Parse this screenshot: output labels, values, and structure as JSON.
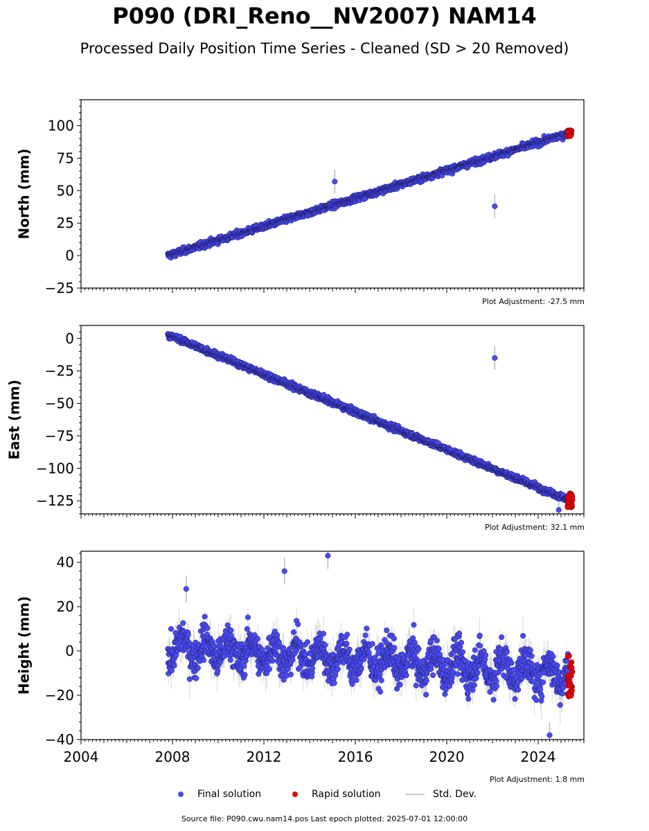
{
  "header": {
    "title": "P090 (DRI_Reno__NV2007) NAM14",
    "subtitle": "Processed Daily Position Time Series - Cleaned (SD > 20 Removed)"
  },
  "colors": {
    "final": "#4a4af0",
    "final_edge": "#1a1a60",
    "rapid": "#e00000",
    "stddev": "#b8b8b8"
  },
  "chart_data": [
    {
      "type": "scatter",
      "ylabel": "North (mm)",
      "xlim": [
        2004,
        2026
      ],
      "ylim": [
        -25,
        120
      ],
      "yticks": [
        -25,
        0,
        25,
        50,
        75,
        100
      ],
      "ytick_labels": [
        "−25",
        "0",
        "25",
        "50",
        "75",
        "100"
      ],
      "adjustment": "Plot Adjustment: -27.5 mm",
      "final_trend": {
        "x": [
          2007.8,
          2025.3
        ],
        "y": [
          0,
          94
        ]
      },
      "noise_mm": 2.0,
      "outliers": [
        {
          "x": 2022.1,
          "y": 38
        },
        {
          "x": 2015.1,
          "y": 57
        }
      ],
      "rapid_range": {
        "x": [
          2025.28,
          2025.5
        ],
        "y": [
          92,
          97
        ]
      },
      "series": [
        {
          "name": "Final solution"
        },
        {
          "name": "Rapid solution"
        },
        {
          "name": "Std. Dev."
        }
      ]
    },
    {
      "type": "scatter",
      "ylabel": "East (mm)",
      "xlim": [
        2004,
        2026
      ],
      "ylim": [
        -135,
        10
      ],
      "yticks": [
        -125,
        -100,
        -75,
        -50,
        -25,
        0
      ],
      "ytick_labels": [
        "−125",
        "−100",
        "−75",
        "−50",
        "−25",
        "0"
      ],
      "adjustment": "Plot Adjustment: 32.1 mm",
      "final_trend": {
        "x": [
          2007.8,
          2025.3
        ],
        "y": [
          3,
          -124
        ]
      },
      "noise_mm": 2.0,
      "outliers": [
        {
          "x": 2022.1,
          "y": -15
        },
        {
          "x": 2024.9,
          "y": -132
        }
      ],
      "rapid_range": {
        "x": [
          2025.28,
          2025.5
        ],
        "y": [
          -130,
          -119
        ]
      }
    },
    {
      "type": "scatter",
      "ylabel": "Height (mm)",
      "xlim": [
        2004,
        2026
      ],
      "ylim": [
        -40,
        45
      ],
      "yticks": [
        -40,
        -20,
        0,
        20,
        40
      ],
      "ytick_labels": [
        "−40",
        "−20",
        "0",
        "20",
        "40"
      ],
      "xtick_labels": [
        "2004",
        "2008",
        "2012",
        "2016",
        "2020",
        "2024"
      ],
      "adjustment": "Plot Adjustment: 1.8 mm",
      "final_trend": {
        "x": [
          2007.8,
          2025.3
        ],
        "y": [
          2,
          -10
        ]
      },
      "noise_mm": 7.0,
      "outliers": [
        {
          "x": 2014.8,
          "y": 43
        },
        {
          "x": 2012.9,
          "y": 36
        },
        {
          "x": 2024.5,
          "y": -38
        },
        {
          "x": 2008.6,
          "y": 28
        }
      ],
      "rapid_range": {
        "x": [
          2025.28,
          2025.5
        ],
        "y": [
          -22,
          -2
        ]
      }
    }
  ],
  "legend": {
    "final": "Final solution",
    "rapid": "Rapid solution",
    "stddev": "Std. Dev."
  },
  "footer": {
    "source": "Source file: P090.cwu.nam14.pos  Last epoch plotted: 2025-07-01 12:00:00"
  }
}
